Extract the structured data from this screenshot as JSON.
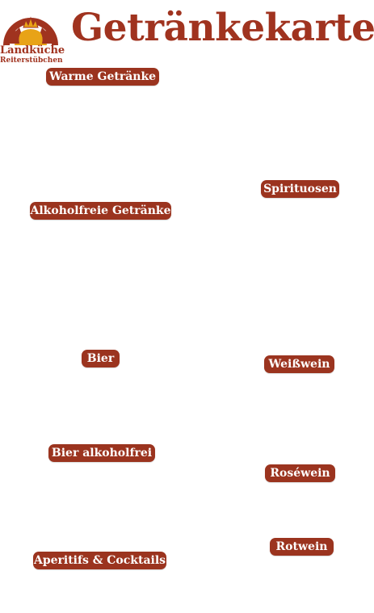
{
  "header": {
    "logo_line1": "Landküche",
    "logo_line2": "Reiterstübchen",
    "title": "Getränkekarte"
  },
  "categories": [
    {
      "label": "Warme Getränke"
    },
    {
      "label": "Spirituosen"
    },
    {
      "label": "Alkoholfreie Getränke"
    },
    {
      "label": "Bier"
    },
    {
      "label": "Weißwein"
    },
    {
      "label": "Bier alkoholfrei"
    },
    {
      "label": "Roséwein"
    },
    {
      "label": "Rotwein"
    },
    {
      "label": "Aperitifs & Cocktails"
    }
  ],
  "colors": {
    "brand": "#a0331f",
    "gold": "#e8a317"
  }
}
